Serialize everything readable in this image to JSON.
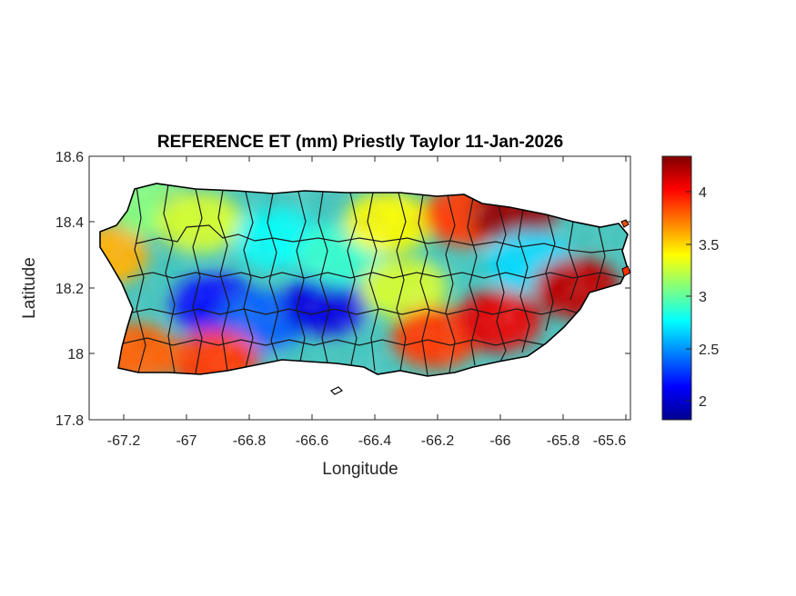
{
  "title": "REFERENCE ET (mm) Priestly Taylor 11-Jan-2026",
  "xlabel": "Longitude",
  "ylabel": "Latitude",
  "x_ticks": [
    "-67.2",
    "-67",
    "-66.8",
    "-66.6",
    "-66.4",
    "-66.2",
    "-66",
    "-65.8",
    "-65.6"
  ],
  "y_ticks": [
    "18.6",
    "18.4",
    "18.2",
    "18"
  ],
  "y_tick_bottom": "17.8",
  "colorbar": {
    "colormap": "jet",
    "ticks": [
      "4",
      "3.5",
      "3",
      "2.5",
      "2"
    ],
    "min": 1.85,
    "max": 4.35
  },
  "chart_data": {
    "type": "heatmap",
    "title": "REFERENCE ET (mm) Priestly Taylor 11-Jan-2026",
    "xlabel": "Longitude",
    "ylabel": "Latitude",
    "xlim": [
      -67.3,
      -65.58
    ],
    "ylim": [
      17.8,
      18.6
    ],
    "clim": [
      1.85,
      4.35
    ],
    "colormap": "jet",
    "grid": false,
    "regional_values": [
      {
        "lon": -67.25,
        "lat": 18.3,
        "value": 3.6
      },
      {
        "lon": -67.1,
        "lat": 18.45,
        "value": 3.1
      },
      {
        "lon": -66.95,
        "lat": 18.4,
        "value": 3.3
      },
      {
        "lon": -66.9,
        "lat": 18.15,
        "value": 2.2
      },
      {
        "lon": -66.75,
        "lat": 18.1,
        "value": 2.4
      },
      {
        "lon": -66.7,
        "lat": 18.35,
        "value": 2.8
      },
      {
        "lon": -66.55,
        "lat": 18.15,
        "value": 2.1
      },
      {
        "lon": -66.5,
        "lat": 18.3,
        "value": 2.9
      },
      {
        "lon": -66.35,
        "lat": 18.4,
        "value": 3.4
      },
      {
        "lon": -66.3,
        "lat": 18.2,
        "value": 3.3
      },
      {
        "lon": -66.2,
        "lat": 18.05,
        "value": 3.9
      },
      {
        "lon": -66.1,
        "lat": 18.42,
        "value": 3.9
      },
      {
        "lon": -66.0,
        "lat": 18.1,
        "value": 4.1
      },
      {
        "lon": -65.95,
        "lat": 18.42,
        "value": 4.3
      },
      {
        "lon": -65.9,
        "lat": 18.28,
        "value": 2.7
      },
      {
        "lon": -65.75,
        "lat": 18.2,
        "value": 4.2
      },
      {
        "lon": -66.9,
        "lat": 17.98,
        "value": 3.9
      },
      {
        "lon": -67.15,
        "lat": 18.0,
        "value": 3.8
      }
    ]
  }
}
